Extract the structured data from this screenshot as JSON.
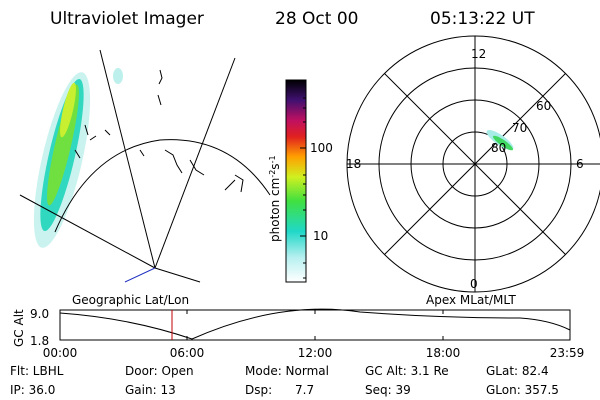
{
  "header": {
    "instrument": "Ultraviolet Imager",
    "date": "28 Oct 00",
    "time": "05:13:22 UT"
  },
  "colorbar": {
    "label_main": "photon cm",
    "label_exp1": "-2",
    "label_mid": "s",
    "label_exp2": "-1",
    "tick_high": "100",
    "tick_low": "10"
  },
  "polar": {
    "mlt_top": "12",
    "mlt_right": "6",
    "mlt_left": "18",
    "mlt_bottom": "0",
    "lat_60": "60",
    "lat_70": "70",
    "lat_80": "80"
  },
  "altitude_panel": {
    "left_title": "Geographic Lat/Lon",
    "right_title": "Apex MLat/MLT",
    "y_label": "GC Alt",
    "y_high": "9.0",
    "y_low": "1.8",
    "x_labels": [
      "00:00",
      "06:00",
      "12:00",
      "18:00",
      "23:59"
    ]
  },
  "footer": {
    "rows": [
      [
        "Flt: LBHL",
        "Door: Open",
        "Mode: Normal",
        "GC Alt: 3.1 Re",
        "GLat: 82.4"
      ],
      [
        "IP: 36.0",
        "Gain: 13",
        "Dsp:      7.7",
        "Seq: 39",
        "GLon: 357.5"
      ]
    ]
  }
}
